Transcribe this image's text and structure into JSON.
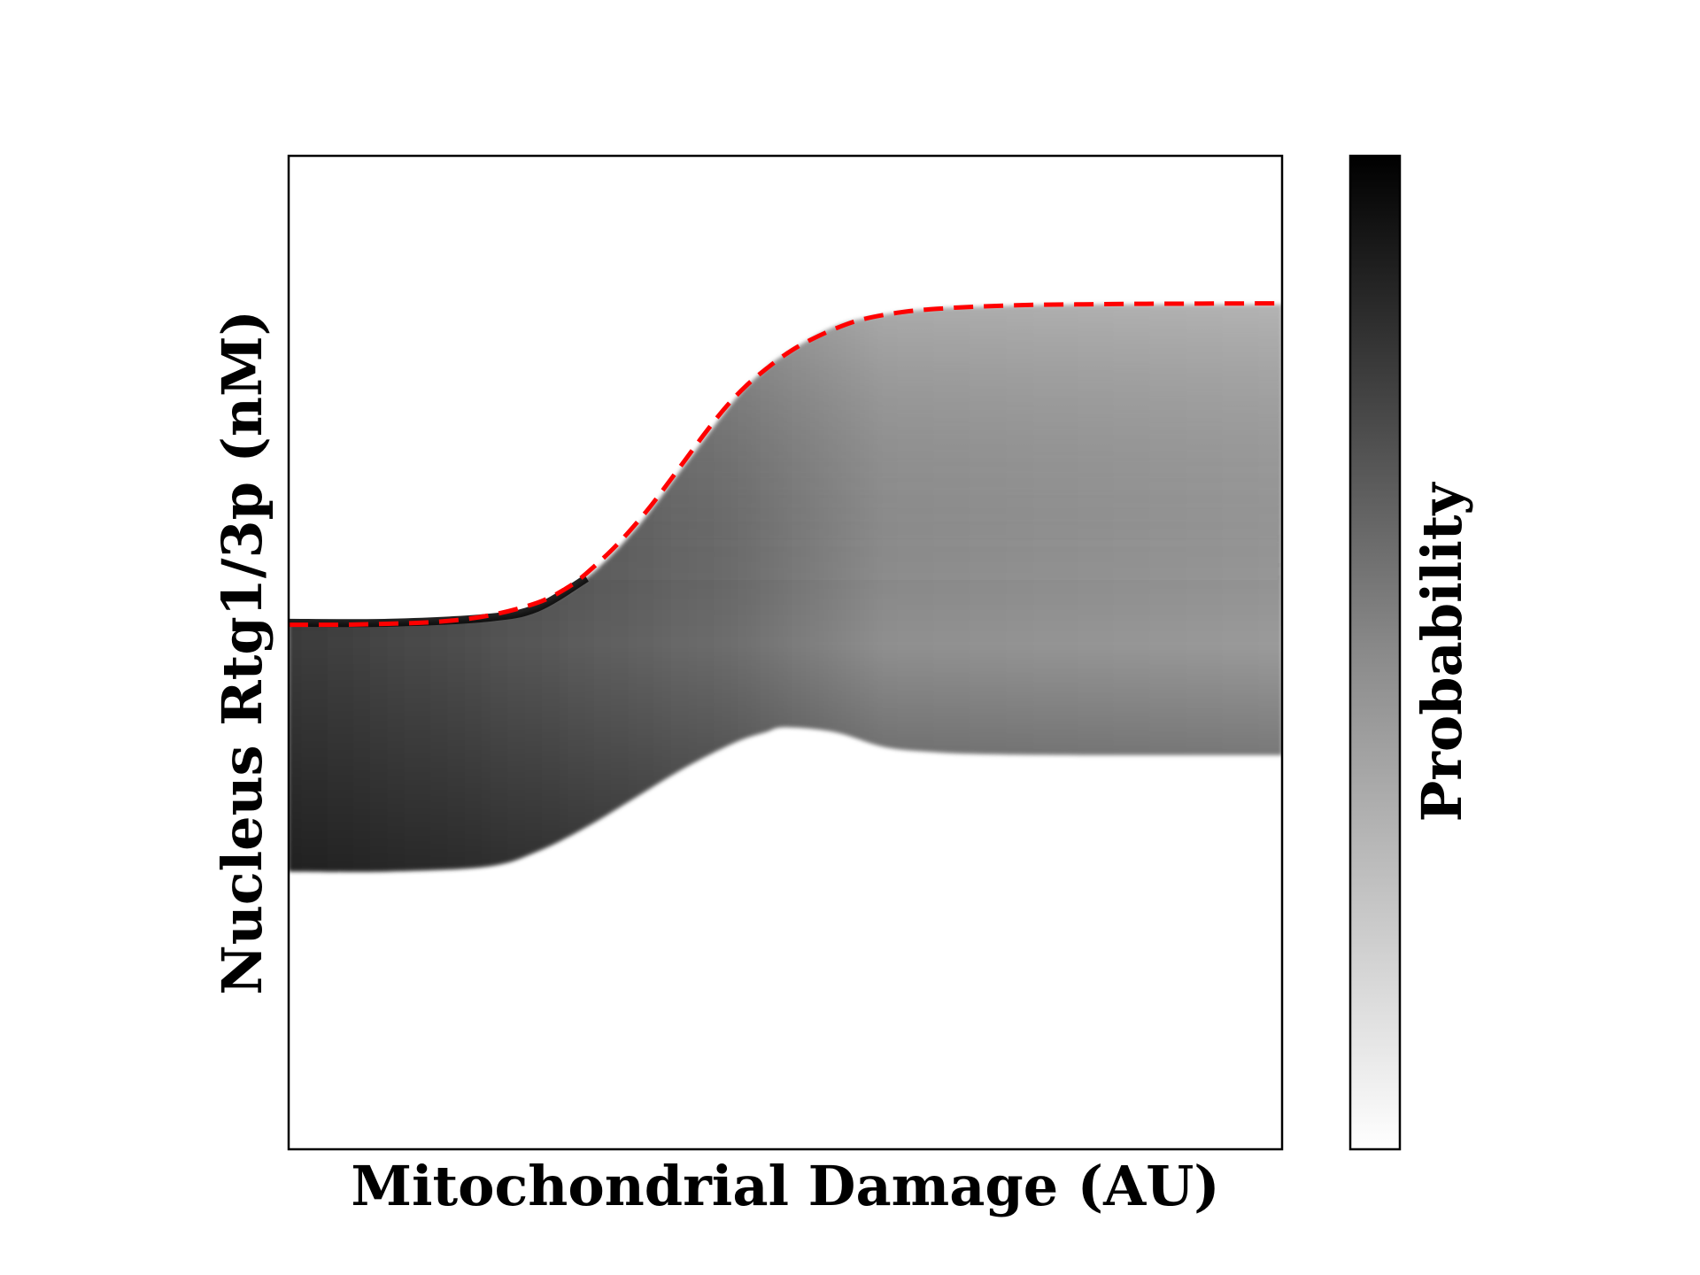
{
  "chart_data": {
    "type": "heatmap",
    "title": "",
    "xlabel": "Mitochondrial Damage (AU)",
    "ylabel": "Nucleus Rtg1/3p (nM)",
    "colorbar_label": "Probability",
    "colormap": "greys",
    "xlim": [
      0,
      1
    ],
    "ylim": [
      0,
      1
    ],
    "ticks_visible": false,
    "grid": false,
    "density_band": {
      "x": [
        0.0,
        0.1,
        0.2,
        0.25,
        0.3,
        0.35,
        0.4,
        0.45,
        0.48,
        0.5,
        0.55,
        0.6,
        0.65,
        0.7,
        0.8,
        0.9,
        1.0
      ],
      "upper": [
        0.53,
        0.53,
        0.535,
        0.545,
        0.575,
        0.625,
        0.69,
        0.755,
        0.785,
        0.8,
        0.828,
        0.84,
        0.846,
        0.848,
        0.85,
        0.85,
        0.85
      ],
      "lower": [
        0.28,
        0.28,
        0.285,
        0.3,
        0.325,
        0.355,
        0.385,
        0.41,
        0.42,
        0.425,
        0.42,
        0.405,
        0.4,
        0.398,
        0.397,
        0.397,
        0.397
      ],
      "left_intensity": 0.95,
      "right_intensity": 0.4
    },
    "series": [
      {
        "line_style": "dashed",
        "color": "#ff0000",
        "x": [
          0.0,
          0.05,
          0.1,
          0.15,
          0.2,
          0.25,
          0.28,
          0.3,
          0.33,
          0.36,
          0.38,
          0.4,
          0.42,
          0.44,
          0.46,
          0.48,
          0.5,
          0.52,
          0.55,
          0.58,
          0.62,
          0.66,
          0.7,
          0.75,
          0.8,
          0.85,
          0.9,
          0.95,
          1.0
        ],
        "y": [
          0.528,
          0.528,
          0.529,
          0.531,
          0.537,
          0.55,
          0.565,
          0.58,
          0.608,
          0.642,
          0.668,
          0.695,
          0.722,
          0.747,
          0.768,
          0.785,
          0.8,
          0.812,
          0.826,
          0.836,
          0.843,
          0.8465,
          0.8485,
          0.85,
          0.8505,
          0.851,
          0.8512,
          0.8514,
          0.8515
        ]
      }
    ]
  }
}
